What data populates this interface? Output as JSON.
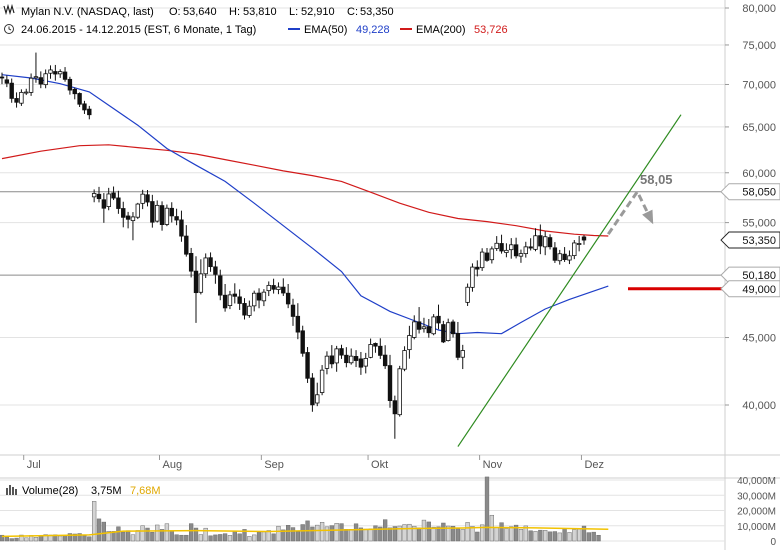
{
  "header": {
    "title": "Mylan N.V. (NASDAQ, last)",
    "open_label": "O:",
    "open": "53,640",
    "high_label": "H:",
    "high": "53,810",
    "low_label": "L:",
    "low": "52,910",
    "close_label": "C:",
    "close": "53,350",
    "range_text": "24.06.2015 - 14.12.2015 (EST, 6 Monate, 1 Tag)",
    "ema50_label": "EMA(50)",
    "ema50_value": "49,228",
    "ema50_color": "#1f3fc8",
    "ema200_label": "EMA(200)",
    "ema200_value": "53,726",
    "ema200_color": "#d11a1a"
  },
  "colors": {
    "bull": "#ffffff",
    "bear": "#111111",
    "grid": "#e3e3e3",
    "trendline": "#2e8b20",
    "forecast": "#9a9a9a",
    "support": "#d80000",
    "volume_avg": "#f2c200"
  },
  "chart_data": {
    "type": "candlestick",
    "ylim": [
      35500,
      80000
    ],
    "y_ticks": [
      "80,000",
      "75,000",
      "70,000",
      "65,000",
      "60,000",
      "55,000",
      "45,000",
      "40,000"
    ],
    "y_tick_values": [
      80000,
      75000,
      70000,
      65000,
      60000,
      55000,
      45000,
      40000
    ],
    "x_labels": [
      {
        "label": "Jul",
        "index": 2
      },
      {
        "label": "Aug",
        "index": 30
      },
      {
        "label": "Sep",
        "index": 51
      },
      {
        "label": "Okt",
        "index": 73
      },
      {
        "label": "Nov",
        "index": 96
      },
      {
        "label": "Dez",
        "index": 117
      }
    ],
    "hlines": [
      {
        "value": 58050,
        "label": "58,050",
        "style": "gray"
      },
      {
        "value": 50180,
        "label": "50,180",
        "style": "gray"
      },
      {
        "value": 53350,
        "label": "53,350",
        "style": "current"
      },
      {
        "value": 49000,
        "label": "49,000",
        "style": "support"
      }
    ],
    "forecast_label": "58,05",
    "candles": [
      [
        70920,
        71470,
        70040,
        70810
      ],
      [
        70570,
        71120,
        69680,
        70150
      ],
      [
        70160,
        70730,
        67800,
        68320
      ],
      [
        68310,
        69040,
        67230,
        67860
      ],
      [
        67750,
        69410,
        67430,
        69040
      ],
      [
        69000,
        69480,
        68720,
        69080
      ],
      [
        69040,
        71360,
        68620,
        70770
      ],
      [
        70820,
        74010,
        70210,
        70960
      ],
      [
        70840,
        71620,
        69550,
        70050
      ],
      [
        69980,
        71860,
        69540,
        71320
      ],
      [
        71390,
        72380,
        70710,
        71800
      ],
      [
        71600,
        72430,
        70470,
        71290
      ],
      [
        71310,
        71880,
        70810,
        71590
      ],
      [
        71540,
        72160,
        70340,
        70630
      ],
      [
        70630,
        70950,
        68770,
        69320
      ],
      [
        69410,
        69620,
        68210,
        68880
      ],
      [
        68910,
        69040,
        67300,
        67630
      ],
      [
        67670,
        68030,
        66490,
        66960
      ],
      [
        67050,
        67430,
        65870,
        66400
      ],
      [
        57530,
        58280,
        56990,
        57870
      ],
      [
        57790,
        58540,
        56980,
        57350
      ],
      [
        57240,
        57910,
        54980,
        56400
      ],
      [
        56560,
        58440,
        56200,
        57820
      ],
      [
        57920,
        58580,
        57210,
        57410
      ],
      [
        57420,
        58140,
        55850,
        56370
      ],
      [
        56370,
        57040,
        54550,
        55510
      ],
      [
        55640,
        56040,
        54450,
        55320
      ],
      [
        55190,
        56020,
        53330,
        55550
      ],
      [
        55520,
        56930,
        55340,
        56810
      ],
      [
        56880,
        58240,
        56310,
        57800
      ],
      [
        57740,
        58220,
        56580,
        57010
      ],
      [
        57060,
        57730,
        54520,
        55040
      ],
      [
        55140,
        57170,
        55010,
        56680
      ],
      [
        56660,
        57080,
        54230,
        54810
      ],
      [
        54820,
        56760,
        54660,
        56400
      ],
      [
        56390,
        56990,
        55010,
        55650
      ],
      [
        55580,
        56350,
        54750,
        55250
      ],
      [
        55260,
        56160,
        53190,
        53720
      ],
      [
        53720,
        54760,
        51830,
        52050
      ],
      [
        52120,
        52620,
        49980,
        50530
      ],
      [
        50530,
        51860,
        46170,
        48670
      ],
      [
        48700,
        51590,
        48520,
        50290
      ],
      [
        50300,
        52120,
        49930,
        51710
      ],
      [
        51730,
        52210,
        50470,
        50930
      ],
      [
        50910,
        51450,
        49430,
        50250
      ],
      [
        50110,
        50660,
        48030,
        48460
      ],
      [
        48450,
        49410,
        47080,
        47390
      ],
      [
        47580,
        48820,
        47290,
        48480
      ],
      [
        48550,
        49470,
        47760,
        48360
      ],
      [
        48310,
        48950,
        47220,
        47760
      ],
      [
        47760,
        48210,
        46440,
        46800
      ],
      [
        46770,
        48000,
        46580,
        47530
      ],
      [
        47560,
        48840,
        47100,
        48620
      ],
      [
        48630,
        49040,
        47360,
        48040
      ],
      [
        47980,
        48970,
        47540,
        48710
      ],
      [
        48840,
        49630,
        48380,
        49290
      ],
      [
        49280,
        49870,
        48590,
        48960
      ],
      [
        48930,
        49550,
        48540,
        49150
      ],
      [
        49140,
        49900,
        48390,
        48640
      ],
      [
        48620,
        49410,
        47370,
        47720
      ],
      [
        47620,
        48150,
        45930,
        46690
      ],
      [
        46700,
        47780,
        44870,
        45430
      ],
      [
        45530,
        45940,
        43520,
        43780
      ],
      [
        43840,
        44260,
        41570,
        41910
      ],
      [
        41930,
        42290,
        39530,
        40010
      ],
      [
        40140,
        41590,
        39920,
        40720
      ],
      [
        40880,
        42890,
        40690,
        42510
      ],
      [
        42640,
        43930,
        42200,
        43560
      ],
      [
        43580,
        44410,
        42650,
        42980
      ],
      [
        43050,
        44350,
        42390,
        44120
      ],
      [
        44140,
        44440,
        43350,
        43640
      ],
      [
        43630,
        44250,
        42720,
        43070
      ],
      [
        43060,
        44150,
        42920,
        43560
      ],
      [
        43540,
        44020,
        42740,
        43230
      ],
      [
        43350,
        43880,
        42160,
        42730
      ],
      [
        42810,
        43810,
        42270,
        43390
      ],
      [
        43470,
        44920,
        43400,
        44460
      ],
      [
        44540,
        44610,
        43820,
        44330
      ],
      [
        44320,
        44940,
        43350,
        43620
      ],
      [
        43640,
        44400,
        42600,
        42840
      ],
      [
        42850,
        43660,
        39810,
        40310
      ],
      [
        40300,
        40660,
        37710,
        39390
      ],
      [
        39330,
        42830,
        39200,
        42610
      ],
      [
        42580,
        44320,
        42430,
        43990
      ],
      [
        44060,
        45930,
        43370,
        45160
      ],
      [
        45010,
        46780,
        44860,
        46250
      ],
      [
        46250,
        47460,
        45320,
        45650
      ],
      [
        45700,
        46580,
        45390,
        45850
      ],
      [
        45860,
        46480,
        44990,
        45380
      ],
      [
        45300,
        46880,
        45180,
        46650
      ],
      [
        46700,
        47660,
        45660,
        46160
      ],
      [
        46030,
        46330,
        44570,
        44660
      ],
      [
        44760,
        46510,
        44690,
        46180
      ],
      [
        46240,
        46430,
        45000,
        45300
      ],
      [
        45330,
        46240,
        43260,
        43470
      ],
      [
        43480,
        44430,
        42590,
        43990
      ],
      [
        47850,
        49450,
        47550,
        49130
      ],
      [
        49120,
        51220,
        48750,
        50890
      ],
      [
        50880,
        51490,
        50070,
        50710
      ],
      [
        50840,
        52590,
        50550,
        52240
      ],
      [
        52160,
        52620,
        51370,
        51490
      ],
      [
        51550,
        52760,
        51210,
        52530
      ],
      [
        52570,
        53720,
        52350,
        53050
      ],
      [
        53030,
        53850,
        52100,
        52340
      ],
      [
        52200,
        53050,
        51770,
        52400
      ],
      [
        52460,
        53530,
        51640,
        52910
      ],
      [
        52910,
        53570,
        51670,
        51900
      ],
      [
        51870,
        52470,
        51270,
        52100
      ],
      [
        52100,
        53190,
        51740,
        52720
      ],
      [
        52720,
        53520,
        52390,
        52610
      ],
      [
        52490,
        54460,
        52320,
        53750
      ],
      [
        53760,
        54820,
        52050,
        52800
      ],
      [
        52720,
        54170,
        51960,
        53660
      ],
      [
        53580,
        53890,
        52480,
        52730
      ],
      [
        52630,
        53160,
        51260,
        51500
      ],
      [
        51460,
        52440,
        51110,
        52090
      ],
      [
        52050,
        52700,
        51350,
        51560
      ],
      [
        51520,
        52390,
        51160,
        51900
      ],
      [
        51920,
        53350,
        51600,
        53080
      ],
      [
        53000,
        53730,
        52310,
        53030
      ],
      [
        53640,
        53810,
        52910,
        53350
      ]
    ],
    "ema50": [
      [
        0,
        71200
      ],
      [
        6,
        70800
      ],
      [
        12,
        70100
      ],
      [
        18,
        69100
      ],
      [
        22,
        67500
      ],
      [
        28,
        65200
      ],
      [
        34,
        62600
      ],
      [
        40,
        60800
      ],
      [
        46,
        59100
      ],
      [
        52,
        56900
      ],
      [
        58,
        54700
      ],
      [
        64,
        52600
      ],
      [
        70,
        50500
      ],
      [
        74,
        48400
      ],
      [
        80,
        47100
      ],
      [
        86,
        46200
      ],
      [
        90,
        45600
      ],
      [
        94,
        45300
      ],
      [
        98,
        45400
      ],
      [
        103,
        45300
      ],
      [
        107,
        46200
      ],
      [
        112,
        47300
      ],
      [
        117,
        48100
      ],
      [
        122,
        48800
      ],
      [
        125,
        49230
      ]
    ],
    "ema200": [
      [
        0,
        61500
      ],
      [
        8,
        62300
      ],
      [
        16,
        62900
      ],
      [
        22,
        63000
      ],
      [
        28,
        62700
      ],
      [
        34,
        62400
      ],
      [
        40,
        62000
      ],
      [
        46,
        61400
      ],
      [
        52,
        60800
      ],
      [
        58,
        60200
      ],
      [
        64,
        59700
      ],
      [
        70,
        59100
      ],
      [
        76,
        58000
      ],
      [
        82,
        56900
      ],
      [
        88,
        56000
      ],
      [
        94,
        55400
      ],
      [
        100,
        55100
      ],
      [
        106,
        54700
      ],
      [
        112,
        54200
      ],
      [
        118,
        53900
      ],
      [
        122,
        53780
      ],
      [
        125,
        53726
      ]
    ],
    "trendline": [
      [
        94,
        37200
      ],
      [
        140,
        66400
      ]
    ],
    "forecast": [
      [
        125,
        53900
      ],
      [
        131,
        58050
      ],
      [
        134,
        55100
      ]
    ],
    "volume": {
      "label": "Volume(28)",
      "current": "3,75M",
      "average_label": "7,68M",
      "y_ticks": [
        "40,000M",
        "30,000M",
        "20,000M",
        "10,000M",
        "0"
      ],
      "y_tick_values": [
        40000,
        30000,
        20000,
        10000,
        0
      ],
      "ylim": [
        0,
        40000
      ],
      "bars": [
        3800,
        2400,
        1600,
        1900,
        3900,
        2100,
        3600,
        2400,
        3700,
        4200,
        3900,
        4100,
        3300,
        3800,
        4900,
        4600,
        4900,
        3400,
        2800,
        26000,
        14500,
        12400,
        6400,
        6300,
        9300,
        5900,
        6800,
        4100,
        6900,
        10000,
        8500,
        5700,
        10500,
        7600,
        11300,
        6600,
        4100,
        3800,
        3800,
        11400,
        8500,
        4200,
        8400,
        3400,
        4000,
        4300,
        4800,
        3700,
        6700,
        4700,
        7600,
        3000,
        4000,
        5800,
        6000,
        6900,
        4700,
        9700,
        7300,
        10300,
        8800,
        6100,
        10800,
        13200,
        9200,
        10400,
        12300,
        9300,
        10100,
        11600,
        11400,
        7700,
        7700,
        11300,
        8600,
        7800,
        8000,
        10000,
        9200,
        14000,
        8600,
        9500,
        9800,
        10800,
        11000,
        9700,
        8600,
        13700,
        12500,
        9100,
        9300,
        11800,
        9800,
        9700,
        8000,
        7600,
        12200,
        9600,
        5900,
        10600,
        42000,
        16900,
        9000,
        12000,
        8200,
        9400,
        10400,
        7700,
        9900,
        6700,
        6300,
        7100,
        7000,
        6000,
        6200,
        5300,
        8200,
        5600,
        7500,
        7700,
        9800,
        5500,
        5800,
        3750
      ],
      "average": [
        [
          0,
          3000
        ],
        [
          18,
          4000
        ],
        [
          25,
          6500
        ],
        [
          40,
          6800
        ],
        [
          55,
          6200
        ],
        [
          70,
          7200
        ],
        [
          85,
          8200
        ],
        [
          95,
          8500
        ],
        [
          100,
          8900
        ],
        [
          110,
          8600
        ],
        [
          125,
          7680
        ]
      ]
    }
  }
}
